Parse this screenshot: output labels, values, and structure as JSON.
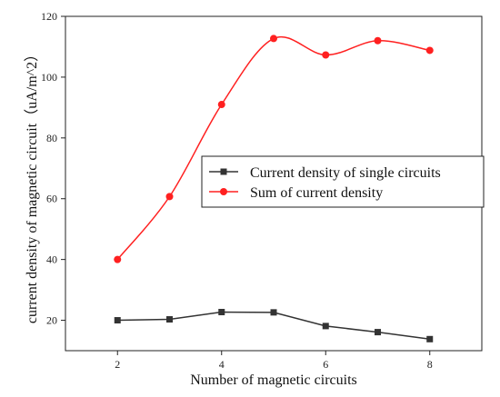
{
  "chart_data": {
    "type": "line",
    "xlabel": "Number of magnetic circuits",
    "ylabel": "current density of magnetic circuit（uA/m^2）",
    "xlim": [
      1,
      9
    ],
    "ylim": [
      10,
      120
    ],
    "xticks": [
      2,
      4,
      6,
      8
    ],
    "yticks": [
      20,
      40,
      60,
      80,
      100,
      120
    ],
    "grid": false,
    "legend_position": "center-right",
    "x": [
      2,
      3,
      4,
      5,
      6,
      7,
      8
    ],
    "series": [
      {
        "name": "Current density of single circuits",
        "marker": "square",
        "color": "#333333",
        "line": "straight",
        "values": [
          20,
          20.3,
          22.7,
          22.6,
          18.1,
          16.1,
          13.8
        ]
      },
      {
        "name": "Sum of current density",
        "marker": "circle",
        "color": "#ff2020",
        "line": "smooth",
        "values": [
          40,
          60.7,
          91,
          112.7,
          107.3,
          112,
          108.8
        ]
      }
    ]
  }
}
